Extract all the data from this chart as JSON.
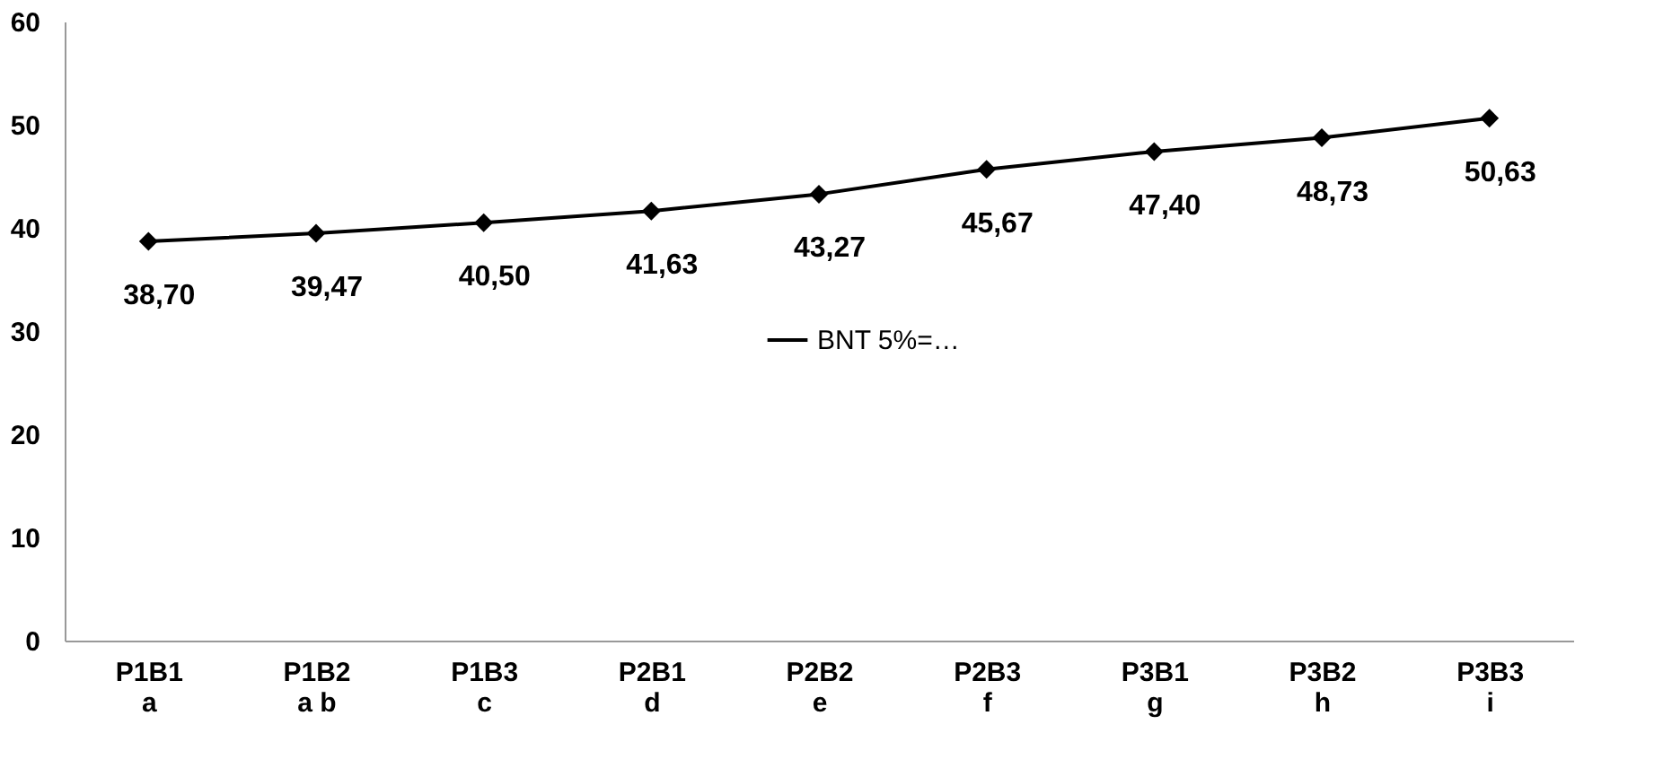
{
  "chart_data": {
    "type": "line",
    "categories": [
      "P1B1\na",
      "P1B2\na b",
      "P1B3\nc",
      "P2B1\nd",
      "P2B2\ne",
      "P2B3\nf",
      "P3B1\ng",
      "P3B2\nh",
      "P3B3\ni"
    ],
    "series": [
      {
        "name": "BNT 5%=…",
        "color": "#000000",
        "values": [
          38.7,
          39.47,
          40.5,
          41.63,
          43.27,
          45.67,
          47.4,
          48.73,
          50.63
        ],
        "value_labels": [
          "38,70",
          "39,47",
          "40,50",
          "41,63",
          "43,27",
          "45,67",
          "47,40",
          "48,73",
          "50,63"
        ]
      }
    ],
    "ylim": [
      0,
      60
    ],
    "yticks": [
      0,
      10,
      20,
      30,
      40,
      50,
      60
    ],
    "grid": false,
    "legend": "center",
    "marker": "diamond",
    "line_style": "solid"
  }
}
